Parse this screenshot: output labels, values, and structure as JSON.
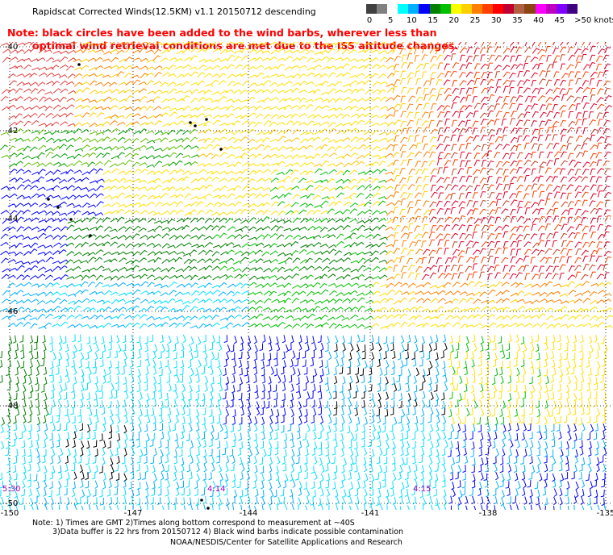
{
  "title": "Rapidscat Corrected Winds(12.5KM) v1.1 20150712 descending",
  "note": {
    "line1": "Note: black circles have been added to the wind barbs, wherever less than",
    "line2": "optimal wind retrieval conditions are met due to the ISS altitude changes."
  },
  "colorbar": {
    "colors": [
      "#404040",
      "#808080",
      "#ffffff",
      "#00ffff",
      "#00b0ff",
      "#0000ff",
      "#008000",
      "#00c000",
      "#ffff00",
      "#ffd000",
      "#ff8000",
      "#ff4000",
      "#ff0000",
      "#c00030",
      "#b06040",
      "#8b4513",
      "#ff00ff",
      "#c000c0",
      "#8000ff",
      "#400080"
    ],
    "labels": [
      "0",
      "5",
      "10",
      "15",
      "20",
      "25",
      "30",
      "35",
      "40",
      "45",
      ">50 knots"
    ]
  },
  "map": {
    "lat_labels": [
      "-40",
      "-42",
      "-44",
      "-46",
      "-48",
      "-50"
    ],
    "lon_labels": [
      "-150",
      "-147",
      "-144",
      "-141",
      "-138",
      "-135"
    ],
    "time_labels": [
      "5:30",
      "4:14",
      "4:15"
    ]
  },
  "footer": {
    "line1": "Note: 1) Times are GMT 2)Times along bottom correspond to measurement at ~40S",
    "line2": "3)Data buffer is 22 hrs from 20150712 4) Black wind barbs indicate possible contamination",
    "credit": "NOAA/NESDIS/Center for Satellite Applications and Research"
  }
}
